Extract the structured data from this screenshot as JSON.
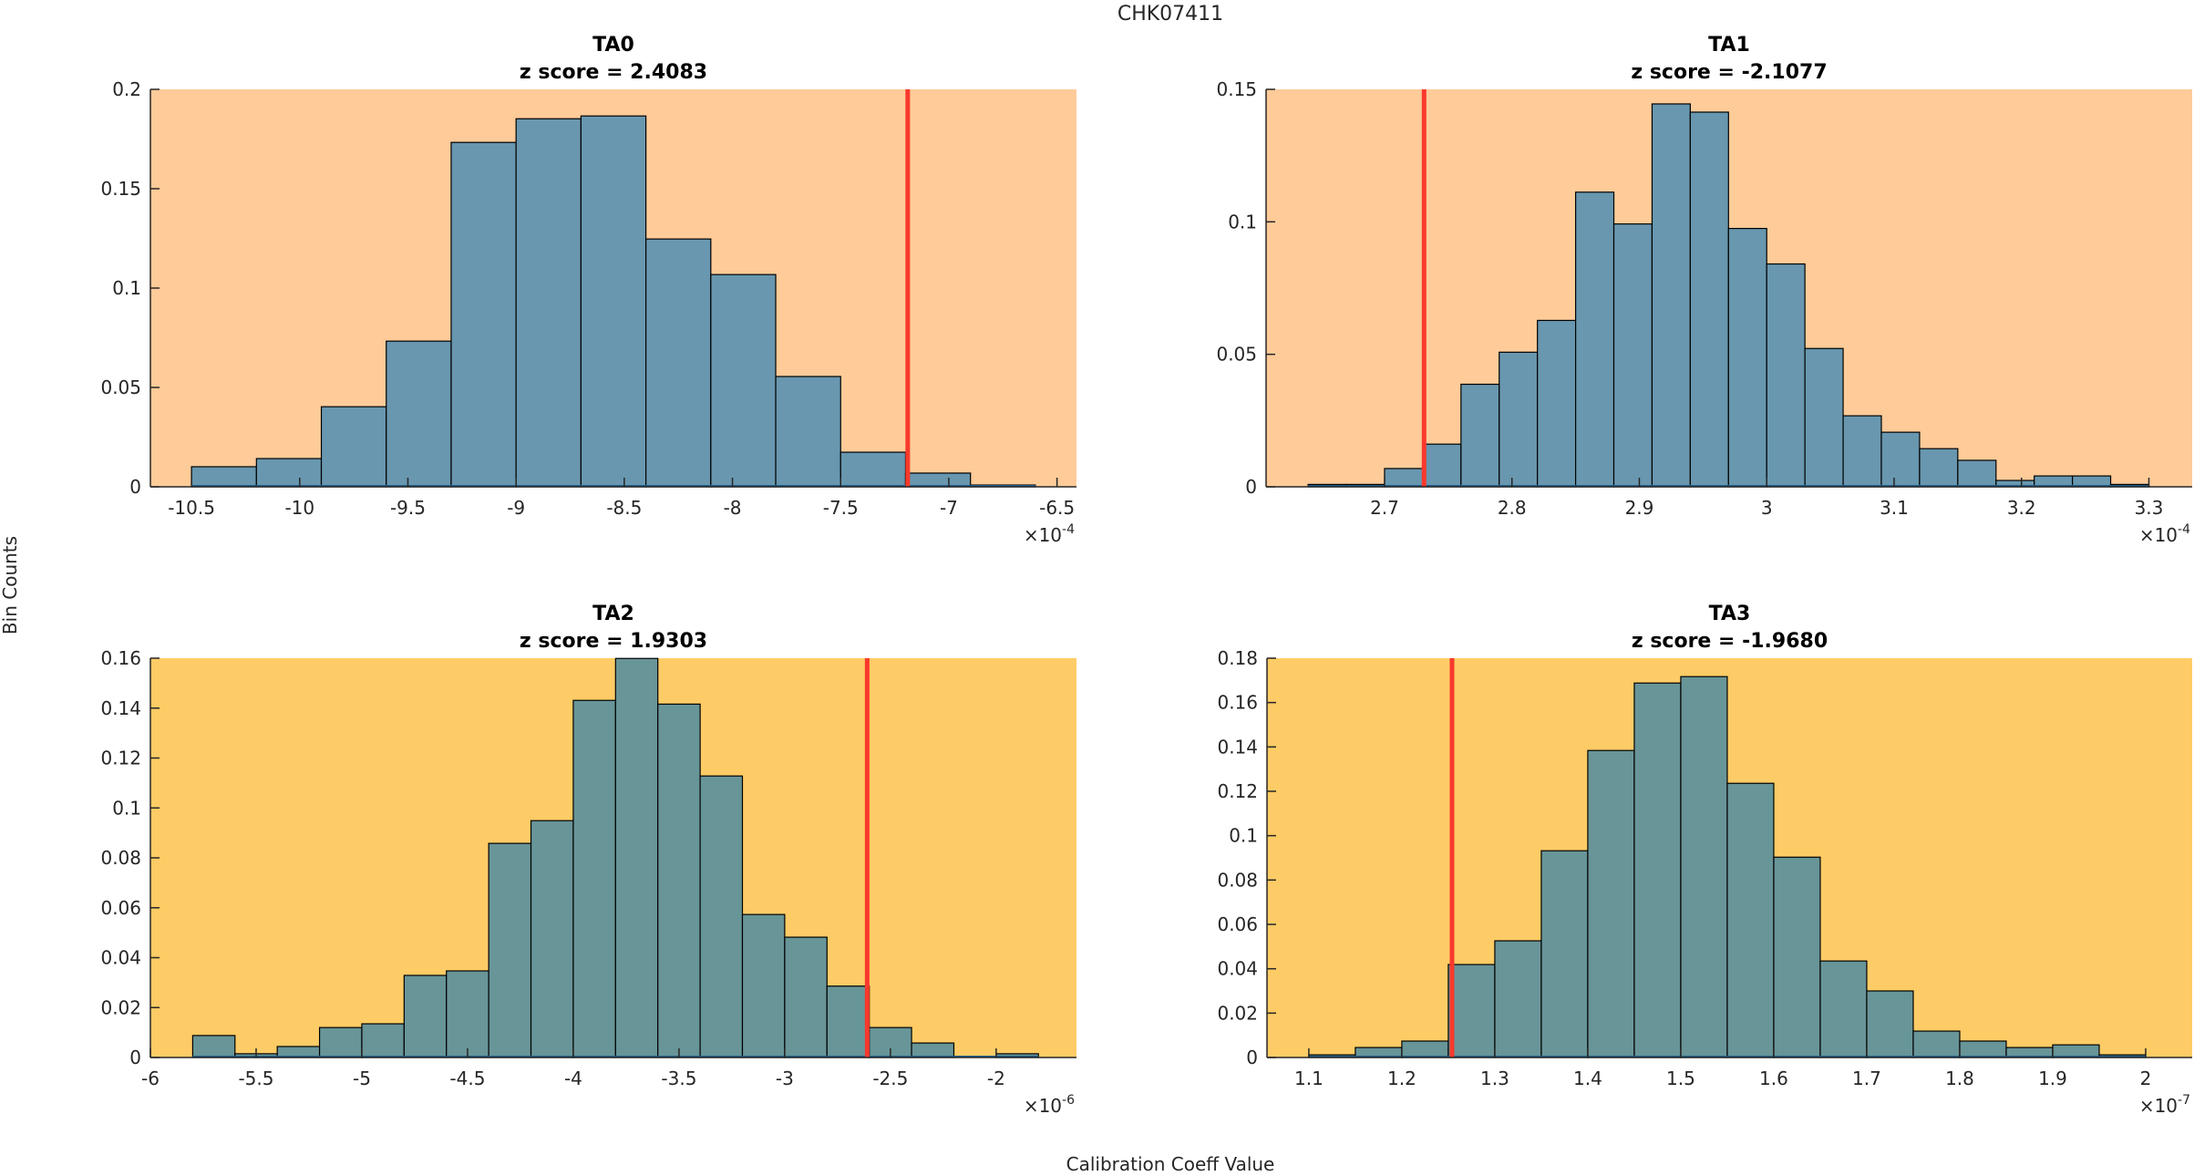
{
  "figure": {
    "suptitle": "CHK07411",
    "xlabel": "Calibration Coeff Value",
    "ylabel": "Bin Counts",
    "colors": {
      "bar_top_row": "#6897af",
      "bar_bottom_row": "#689598",
      "bg_top_row": "#fecb99",
      "bg_bottom_row": "#fecc66",
      "marker_line": "#f8392c",
      "bar_edge": "#000000"
    }
  },
  "chart_data": [
    {
      "type": "bar",
      "subtype": "histogram",
      "title": "TA0",
      "subtitle": "z score = 2.4083",
      "xlabel": "",
      "ylabel": "",
      "x_multiplier_base": "10",
      "x_multiplier_exponent": "-4",
      "xlim": [
        -10.69,
        -6.41
      ],
      "ylim": [
        0,
        0.2
      ],
      "xticks": [
        -10.5,
        -10,
        -9.5,
        -9,
        -8.5,
        -8,
        -7.5,
        -7,
        -6.5
      ],
      "xtick_labels": [
        "-10.5",
        "-10",
        "-9.5",
        "-9",
        "-8.5",
        "-8",
        "-7.5",
        "-7",
        "-6.5"
      ],
      "yticks": [
        0,
        0.05,
        0.1,
        0.15,
        0.2
      ],
      "ytick_labels": [
        "0",
        "0.05",
        "0.1",
        "0.15",
        "0.2"
      ],
      "bin_edges": [
        -10.5,
        -10.2,
        -9.9,
        -9.6,
        -9.3,
        -9.0,
        -8.7,
        -8.4,
        -8.1,
        -7.8,
        -7.5,
        -7.2,
        -6.9,
        -6.6
      ],
      "values": [
        0.0101,
        0.0142,
        0.0403,
        0.0733,
        0.1733,
        0.1852,
        0.1866,
        0.1247,
        0.1068,
        0.0555,
        0.0174,
        0.0069,
        0.0009
      ],
      "marker_x": -7.19,
      "background": "bg_top_row",
      "bar_color": "bar_top_row",
      "grid": false
    },
    {
      "type": "bar",
      "subtype": "histogram",
      "title": "TA1",
      "subtitle": "z score = -2.1077",
      "xlabel": "",
      "ylabel": "",
      "x_multiplier_base": "10",
      "x_multiplier_exponent": "-4",
      "xlim": [
        2.607,
        3.334
      ],
      "ylim": [
        0,
        0.15
      ],
      "xticks": [
        2.7,
        2.8,
        2.9,
        3.0,
        3.1,
        3.2,
        3.3
      ],
      "xtick_labels": [
        "2.7",
        "2.8",
        "2.9",
        "3",
        "3.1",
        "3.2",
        "3.3"
      ],
      "yticks": [
        0,
        0.05,
        0.1,
        0.15
      ],
      "ytick_labels": [
        "0",
        "0.05",
        "0.1",
        "0.15"
      ],
      "bin_edges": [
        2.64,
        2.67,
        2.7,
        2.73,
        2.76,
        2.79,
        2.82,
        2.85,
        2.88,
        2.91,
        2.94,
        2.97,
        3.0,
        3.03,
        3.06,
        3.09,
        3.12,
        3.15,
        3.18,
        3.21,
        3.24,
        3.27,
        3.3
      ],
      "values": [
        0.0009,
        0.0009,
        0.0069,
        0.0161,
        0.0387,
        0.0508,
        0.0628,
        0.1112,
        0.0992,
        0.1445,
        0.1414,
        0.0975,
        0.0841,
        0.0522,
        0.0268,
        0.0206,
        0.0144,
        0.01,
        0.0024,
        0.0041,
        0.0041,
        0.0009
      ],
      "marker_x": 2.731,
      "background": "bg_top_row",
      "bar_color": "bar_top_row",
      "grid": false
    },
    {
      "type": "bar",
      "subtype": "histogram",
      "title": "TA2",
      "subtitle": "z score = 1.9303",
      "xlabel": "",
      "ylabel": "",
      "x_multiplier_base": "10",
      "x_multiplier_exponent": "-6",
      "xlim": [
        -6.0,
        -1.62
      ],
      "ylim": [
        0,
        0.16
      ],
      "xticks": [
        -6,
        -5.5,
        -5,
        -4.5,
        -4,
        -3.5,
        -3,
        -2.5,
        -2
      ],
      "xtick_labels": [
        "-6",
        "-5.5",
        "-5",
        "-4.5",
        "-4",
        "-3.5",
        "-3",
        "-2.5",
        "-2"
      ],
      "yticks": [
        0,
        0.02,
        0.04,
        0.06,
        0.08,
        0.1,
        0.12,
        0.14,
        0.16
      ],
      "ytick_labels": [
        "0",
        "0.02",
        "0.04",
        "0.06",
        "0.08",
        "0.1",
        "0.12",
        "0.14",
        "0.16"
      ],
      "bin_edges": [
        -5.8,
        -5.6,
        -5.4,
        -5.2,
        -5.0,
        -4.8,
        -4.6,
        -4.4,
        -4.2,
        -4.0,
        -3.8,
        -3.6,
        -3.4,
        -3.2,
        -3.0,
        -2.8,
        -2.6,
        -2.4,
        -2.2,
        -2.0,
        -1.8
      ],
      "values": [
        0.0088,
        0.0015,
        0.0044,
        0.012,
        0.0135,
        0.0329,
        0.0347,
        0.0858,
        0.0949,
        0.1431,
        0.1599,
        0.1416,
        0.1128,
        0.0573,
        0.0482,
        0.0286,
        0.012,
        0.0058,
        0.0,
        0.0015
      ],
      "marker_x": -2.61,
      "background": "bg_bottom_row",
      "bar_color": "bar_bottom_row",
      "grid": false
    },
    {
      "type": "bar",
      "subtype": "histogram",
      "title": "TA3",
      "subtitle": "z score = -1.9680",
      "xlabel": "",
      "ylabel": "",
      "x_multiplier_base": "10",
      "x_multiplier_exponent": "-7",
      "xlim": [
        1.055,
        2.05
      ],
      "ylim": [
        0,
        0.18
      ],
      "xticks": [
        1.1,
        1.2,
        1.3,
        1.4,
        1.5,
        1.6,
        1.7,
        1.8,
        1.9,
        2.0
      ],
      "xtick_labels": [
        "1.1",
        "1.2",
        "1.3",
        "1.4",
        "1.5",
        "1.6",
        "1.7",
        "1.8",
        "1.9",
        "2"
      ],
      "yticks": [
        0,
        0.02,
        0.04,
        0.06,
        0.08,
        0.1,
        0.12,
        0.14,
        0.16,
        0.18
      ],
      "ytick_labels": [
        "0",
        "0.02",
        "0.04",
        "0.06",
        "0.08",
        "0.1",
        "0.12",
        "0.14",
        "0.16",
        "0.18"
      ],
      "bin_edges": [
        1.1,
        1.15,
        1.2,
        1.25,
        1.3,
        1.35,
        1.4,
        1.45,
        1.5,
        1.55,
        1.6,
        1.65,
        1.7,
        1.75,
        1.8,
        1.85,
        1.9,
        1.95,
        2.0
      ],
      "values": [
        0.0012,
        0.0045,
        0.0074,
        0.0419,
        0.0526,
        0.0932,
        0.1384,
        0.1688,
        0.1717,
        0.1236,
        0.0903,
        0.0435,
        0.03,
        0.0119,
        0.0074,
        0.0045,
        0.0057,
        0.0012
      ],
      "marker_x": 1.254,
      "background": "bg_bottom_row",
      "bar_color": "bar_bottom_row",
      "grid": false
    }
  ]
}
